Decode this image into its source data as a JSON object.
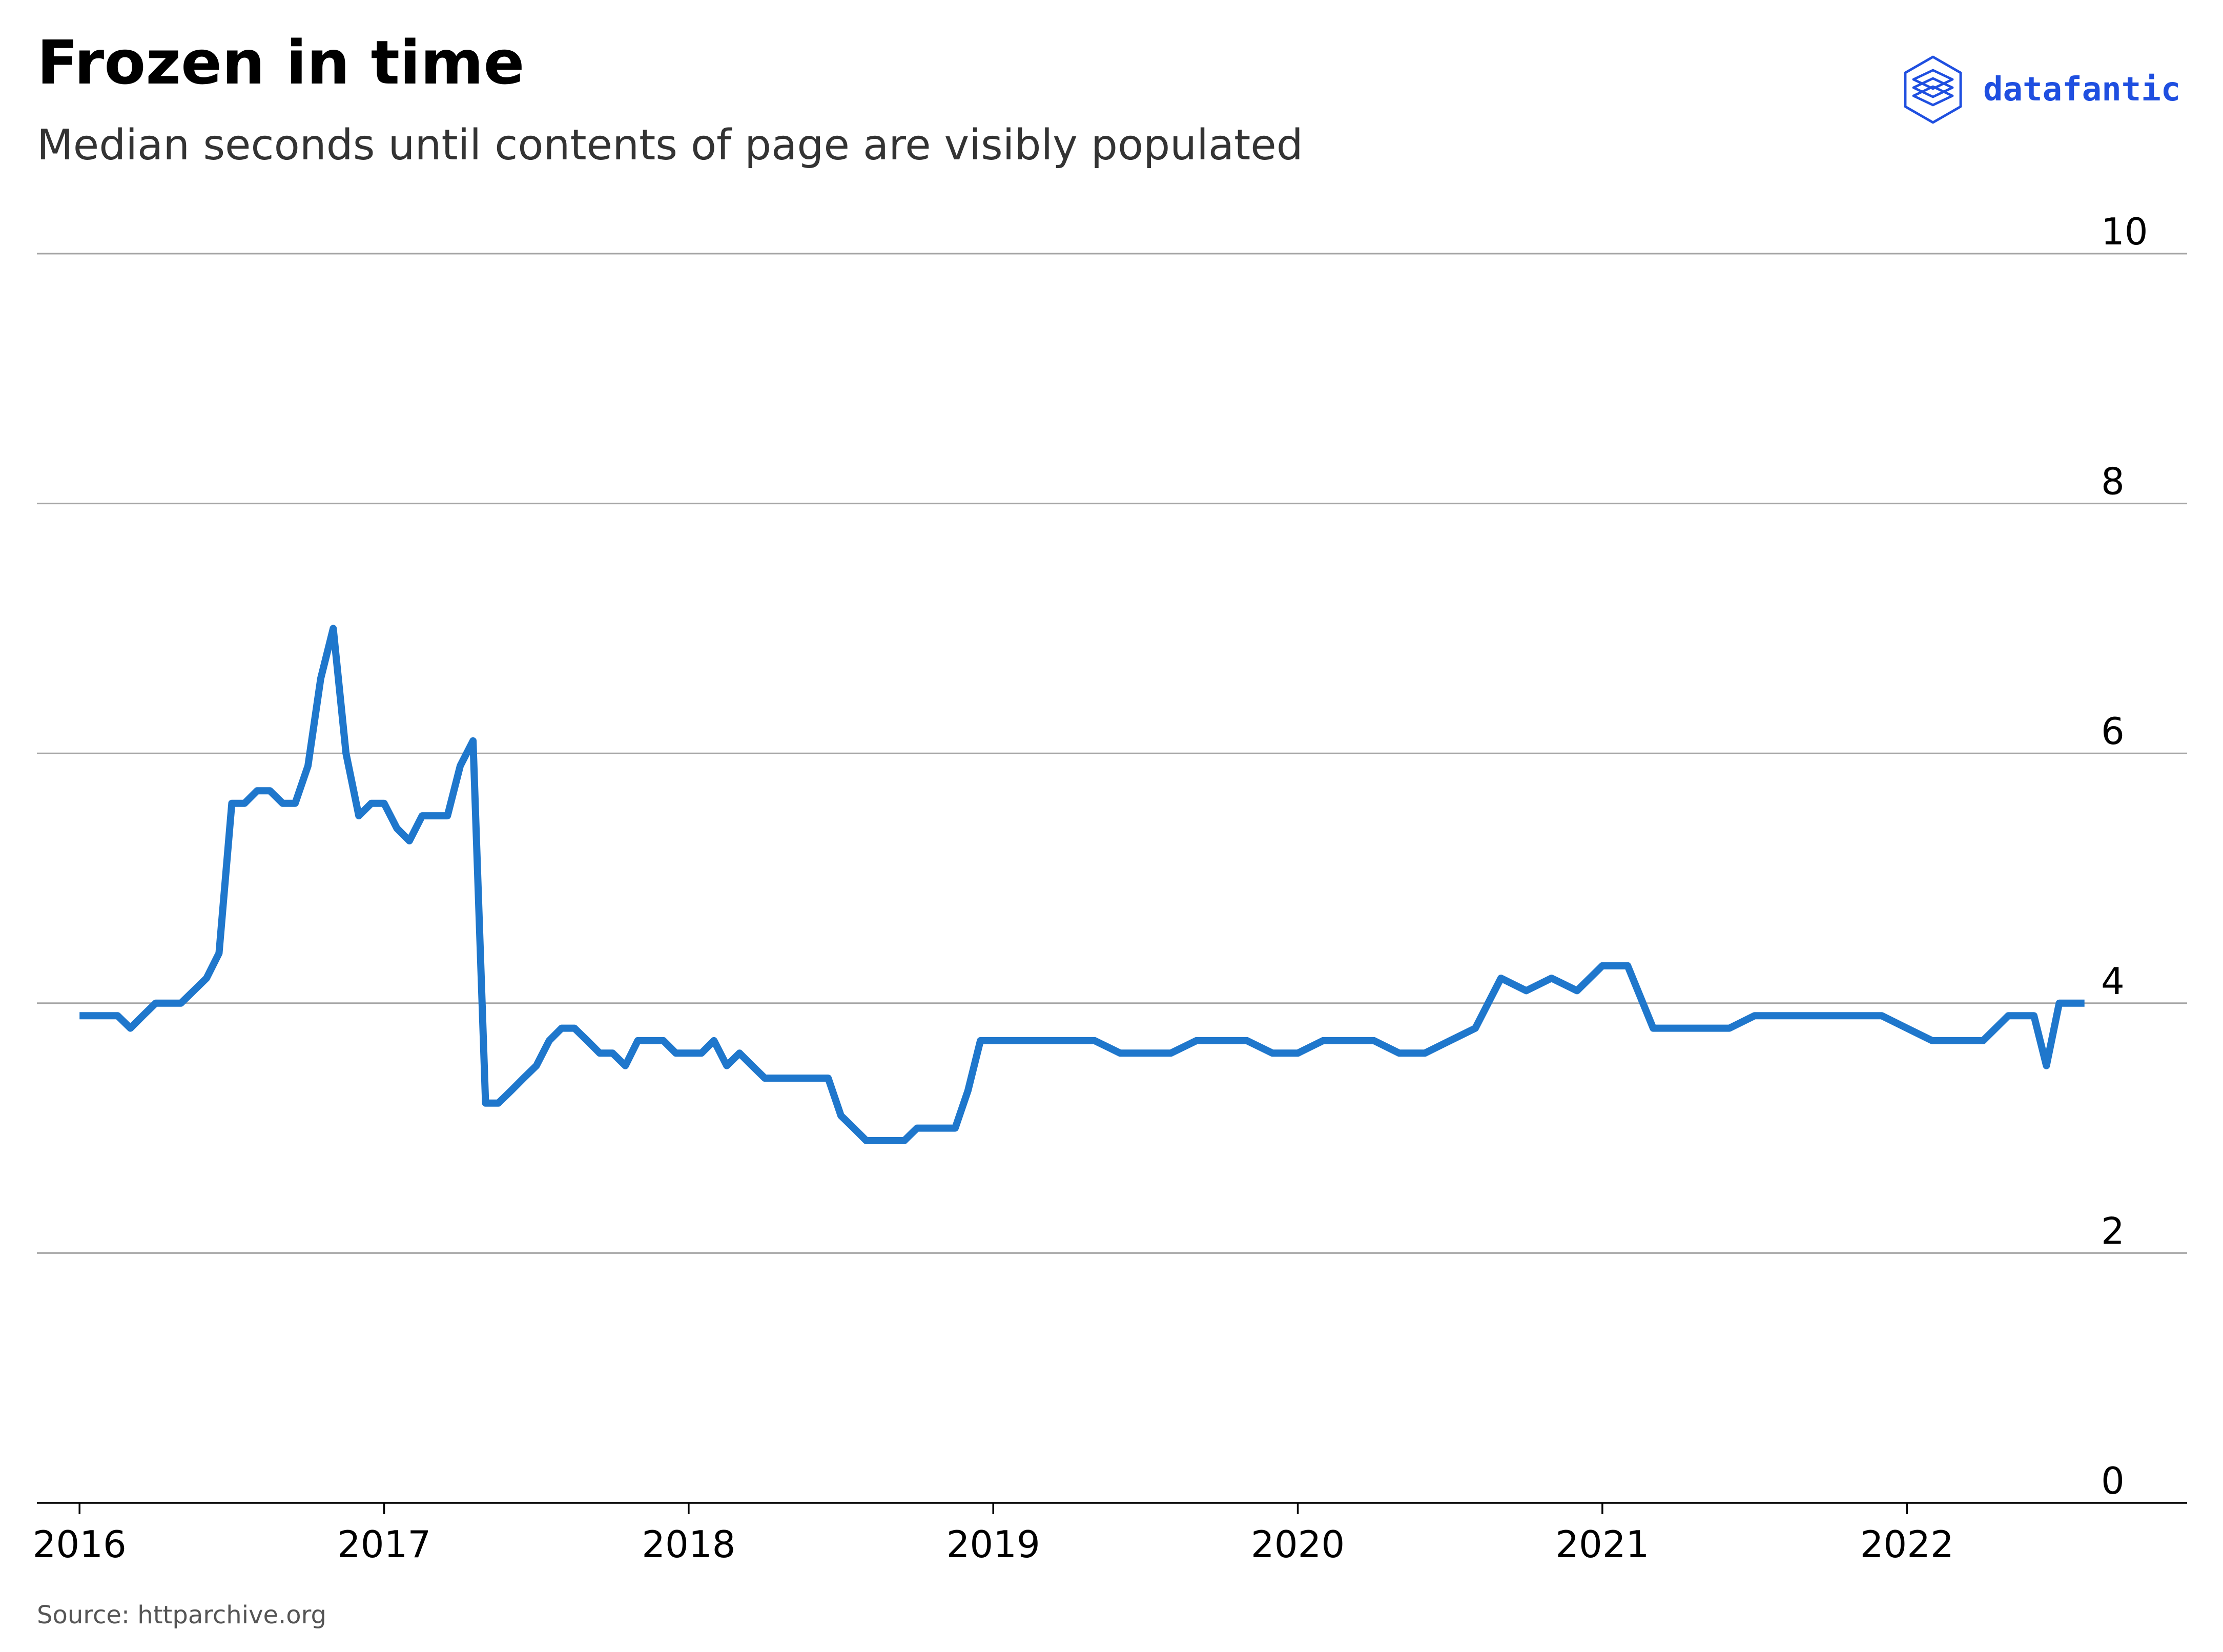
{
  "header": {
    "title": "Frozen in time",
    "subtitle": "Median seconds until contents of page are visibly populated"
  },
  "brand": {
    "name": "datafantic",
    "icon": "layers-cube-icon",
    "color": "#1f4fe0"
  },
  "footer": {
    "source": "Source: httparchive.org"
  },
  "chart_data": {
    "type": "line",
    "title": "Frozen in time",
    "subtitle": "Median seconds until contents of page are visibly populated",
    "xlabel": "",
    "ylabel": "",
    "x_ticks": [
      "2016",
      "2017",
      "2018",
      "2019",
      "2020",
      "2021",
      "2022"
    ],
    "y_ticks": [
      0,
      2,
      4,
      6,
      8,
      10
    ],
    "xlim": [
      2015.86,
      2022.92
    ],
    "ylim": [
      0,
      10
    ],
    "grid": "horizontal",
    "line_color": "#1f77cc",
    "grid_color": "#a6a6a6",
    "series": [
      {
        "x": [
          2016.0,
          2016.042,
          2016.083,
          2016.125,
          2016.167,
          2016.208,
          2016.25,
          2016.292,
          2016.333,
          2016.375,
          2016.417,
          2016.458,
          2016.5,
          2016.542,
          2016.583,
          2016.625,
          2016.667,
          2016.708,
          2016.75,
          2016.792,
          2016.833,
          2016.875,
          2016.917,
          2016.958,
          2017.0,
          2017.042,
          2017.083,
          2017.125,
          2017.167,
          2017.208,
          2017.25,
          2017.292,
          2017.333,
          2017.375,
          2017.417,
          2017.458,
          2017.5,
          2017.542,
          2017.583,
          2017.625,
          2017.667,
          2017.708,
          2017.75,
          2017.792,
          2017.833,
          2017.875,
          2017.917,
          2017.958,
          2018.0,
          2018.042,
          2018.083,
          2018.125,
          2018.167,
          2018.208,
          2018.25,
          2018.292,
          2018.333,
          2018.375,
          2018.417,
          2018.458,
          2018.5,
          2018.542,
          2018.583,
          2018.625,
          2018.667,
          2018.708,
          2018.75,
          2018.792,
          2018.833,
          2018.875,
          2018.917,
          2018.958,
          2019.0,
          2019.083,
          2019.167,
          2019.25,
          2019.333,
          2019.417,
          2019.5,
          2019.583,
          2019.667,
          2019.75,
          2019.833,
          2019.917,
          2020.0,
          2020.083,
          2020.167,
          2020.25,
          2020.333,
          2020.417,
          2020.5,
          2020.583,
          2020.667,
          2020.75,
          2020.833,
          2020.917,
          2021.0,
          2021.083,
          2021.167,
          2021.25,
          2021.333,
          2021.417,
          2021.5,
          2021.583,
          2021.667,
          2021.75,
          2021.833,
          2021.917,
          2022.0,
          2022.083,
          2022.167,
          2022.25,
          2022.333,
          2022.417,
          2022.458,
          2022.5,
          2022.542,
          2022.583
        ],
        "y": [
          3.9,
          3.9,
          3.9,
          3.9,
          3.8,
          3.9,
          4.0,
          4.0,
          4.0,
          4.1,
          4.2,
          4.4,
          5.6,
          5.6,
          5.7,
          5.7,
          5.6,
          5.6,
          5.9,
          6.6,
          7.0,
          6.0,
          5.5,
          5.6,
          5.6,
          5.4,
          5.3,
          5.5,
          5.5,
          5.5,
          5.9,
          6.1,
          3.2,
          3.2,
          3.3,
          3.4,
          3.5,
          3.7,
          3.8,
          3.8,
          3.7,
          3.6,
          3.6,
          3.5,
          3.7,
          3.7,
          3.7,
          3.6,
          3.6,
          3.6,
          3.7,
          3.5,
          3.6,
          3.5,
          3.4,
          3.4,
          3.4,
          3.4,
          3.4,
          3.4,
          3.1,
          3.0,
          2.9,
          2.9,
          2.9,
          2.9,
          3.0,
          3.0,
          3.0,
          3.0,
          3.3,
          3.7,
          3.7,
          3.7,
          3.7,
          3.7,
          3.7,
          3.6,
          3.6,
          3.6,
          3.7,
          3.7,
          3.7,
          3.6,
          3.6,
          3.7,
          3.7,
          3.7,
          3.6,
          3.6,
          3.7,
          3.8,
          4.2,
          4.1,
          4.2,
          4.1,
          4.3,
          4.3,
          3.8,
          3.8,
          3.8,
          3.8,
          3.9,
          3.9,
          3.9,
          3.9,
          3.9,
          3.9,
          3.8,
          3.7,
          3.7,
          3.7,
          3.9,
          3.9,
          3.5,
          4.0,
          4.0,
          4.0
        ]
      }
    ]
  }
}
